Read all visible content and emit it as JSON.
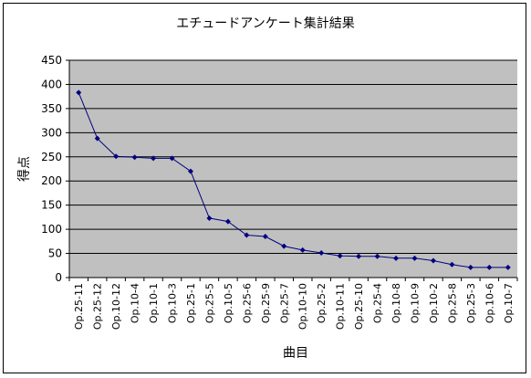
{
  "chart_data": {
    "type": "line",
    "title": "エチュードアンケート集計結果",
    "xlabel": "曲目",
    "ylabel": "得点",
    "ylim": [
      0,
      450
    ],
    "ytick_step": 50,
    "grid": true,
    "categories": [
      "Op.25-11",
      "Op.25-12",
      "Op.10-12",
      "Op.10-4",
      "Op.10-1",
      "Op.10-3",
      "Op.25-1",
      "Op.25-5",
      "Op.10-5",
      "Op.25-6",
      "Op.25-9",
      "Op.25-7",
      "Op.10-10",
      "Op.25-2",
      "Op.10-11",
      "Op.25-10",
      "Op.25-4",
      "Op.10-8",
      "Op.10-9",
      "Op.10-2",
      "Op.25-8",
      "Op.25-3",
      "Op.10-6",
      "Op.10-7"
    ],
    "series": [
      {
        "values": [
          383,
          288,
          251,
          249,
          247,
          247,
          220,
          123,
          116,
          88,
          85,
          65,
          57,
          51,
          45,
          44,
          44,
          40,
          40,
          35,
          27,
          21,
          21,
          21
        ]
      }
    ],
    "colors": {
      "plot_background": "#c0c0c0",
      "line": "#000080",
      "grid": "#000000"
    }
  }
}
